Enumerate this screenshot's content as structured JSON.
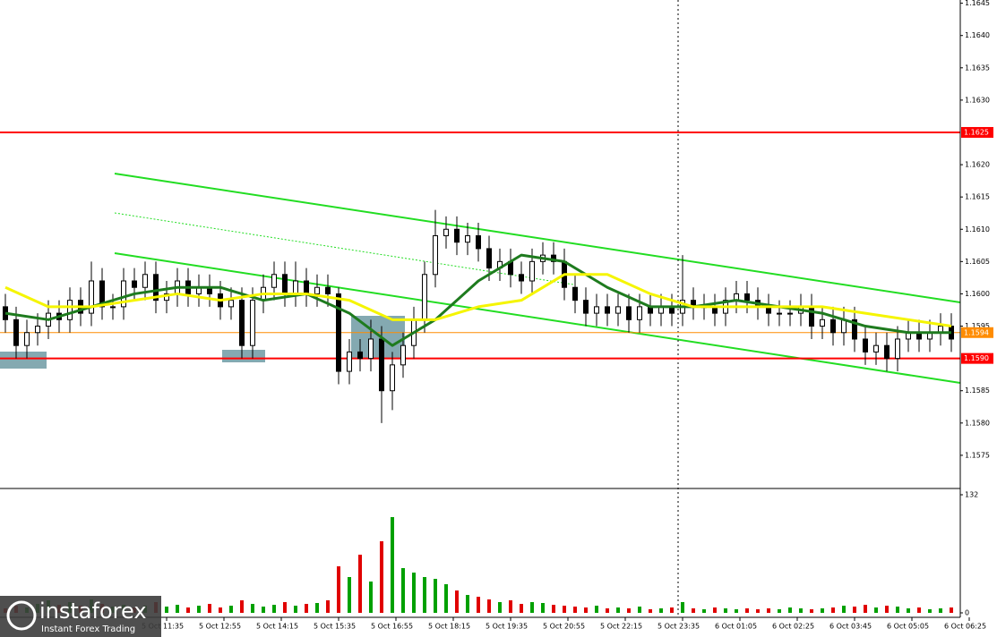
{
  "chart_data": {
    "type": "candlestick",
    "open": [
      1.1598,
      1.1596,
      1.1592,
      1.1594,
      1.1595,
      1.1597,
      1.1596,
      1.1599,
      1.1597,
      1.1602,
      1.1598,
      1.1598,
      1.1602,
      1.1601,
      1.1603,
      1.1599,
      1.16,
      1.1602,
      1.16,
      1.1601,
      1.16,
      1.1598,
      1.1599,
      1.1592,
      1.1599,
      1.1601,
      1.1603,
      1.16,
      1.1602,
      1.16,
      1.1601,
      1.16,
      1.1588,
      1.1591,
      1.159,
      1.1593,
      1.1585,
      1.1589,
      1.1592,
      1.1596,
      1.1603,
      1.1609,
      1.161,
      1.1608,
      1.1609,
      1.1607,
      1.1604,
      1.1605,
      1.1603,
      1.1602,
      1.1605,
      1.1606,
      1.1605,
      1.1601,
      1.1599,
      1.1597,
      1.1598,
      1.1597,
      1.1598,
      1.1596,
      1.1598,
      1.1597,
      1.1598,
      1.1597,
      1.1599,
      1.1598,
      1.1598,
      1.1597,
      1.1599,
      1.16,
      1.1599,
      1.1598,
      1.1597,
      1.1597,
      1.1597,
      1.1598,
      1.1595,
      1.1596,
      1.1594,
      1.1596,
      1.1593,
      1.1591,
      1.1592,
      1.159,
      1.1593,
      1.1594,
      1.1593,
      1.1594,
      1.1595
    ],
    "high": [
      1.16,
      1.1598,
      1.1596,
      1.1597,
      1.1599,
      1.1599,
      1.1601,
      1.1601,
      1.1605,
      1.1604,
      1.16,
      1.1604,
      1.1604,
      1.1605,
      1.1605,
      1.1602,
      1.1604,
      1.1604,
      1.1603,
      1.1603,
      1.1602,
      1.1601,
      1.1601,
      1.1601,
      1.1603,
      1.1605,
      1.1605,
      1.1605,
      1.1604,
      1.1603,
      1.1603,
      1.1601,
      1.1593,
      1.1593,
      1.1596,
      1.1595,
      1.1591,
      1.1594,
      1.1598,
      1.1605,
      1.1613,
      1.1612,
      1.1612,
      1.1611,
      1.1611,
      1.1609,
      1.1607,
      1.1607,
      1.1605,
      1.1607,
      1.1608,
      1.1608,
      1.1607,
      1.1603,
      1.1601,
      1.16,
      1.16,
      1.16,
      1.16,
      1.16,
      1.16,
      1.16,
      1.16,
      1.1606,
      1.1601,
      1.16,
      1.16,
      1.1601,
      1.1602,
      1.1602,
      1.1601,
      1.16,
      1.1599,
      1.1599,
      1.16,
      1.16,
      1.1598,
      1.1598,
      1.1598,
      1.1598,
      1.1595,
      1.1594,
      1.1594,
      1.1595,
      1.1596,
      1.1596,
      1.1596,
      1.1597,
      1.1597
    ],
    "low": [
      1.1594,
      1.159,
      1.159,
      1.1592,
      1.1593,
      1.1594,
      1.1594,
      1.1595,
      1.1595,
      1.1596,
      1.1596,
      1.1596,
      1.1599,
      1.1599,
      1.1597,
      1.1597,
      1.1598,
      1.1598,
      1.1598,
      1.1598,
      1.1596,
      1.1596,
      1.159,
      1.159,
      1.1597,
      1.1599,
      1.1598,
      1.1598,
      1.1598,
      1.1598,
      1.1598,
      1.1586,
      1.1586,
      1.1588,
      1.1588,
      1.158,
      1.1582,
      1.1587,
      1.159,
      1.1594,
      1.1601,
      1.1607,
      1.1606,
      1.1606,
      1.1605,
      1.1602,
      1.1602,
      1.1601,
      1.16,
      1.16,
      1.1603,
      1.1603,
      1.1599,
      1.1597,
      1.1595,
      1.1595,
      1.1595,
      1.1595,
      1.1594,
      1.1594,
      1.1595,
      1.1595,
      1.1595,
      1.1595,
      1.1596,
      1.1596,
      1.1595,
      1.1595,
      1.1597,
      1.1597,
      1.1596,
      1.1595,
      1.1595,
      1.1595,
      1.1595,
      1.1593,
      1.1593,
      1.1592,
      1.1592,
      1.1591,
      1.1589,
      1.1589,
      1.1588,
      1.1588,
      1.1591,
      1.1591,
      1.1591,
      1.1592,
      1.1591
    ],
    "close": [
      1.1596,
      1.1592,
      1.1594,
      1.1595,
      1.1597,
      1.1596,
      1.1599,
      1.1597,
      1.1602,
      1.1598,
      1.1598,
      1.1602,
      1.1601,
      1.1603,
      1.1599,
      1.16,
      1.1602,
      1.16,
      1.1601,
      1.16,
      1.1598,
      1.1599,
      1.1592,
      1.1599,
      1.1601,
      1.1603,
      1.16,
      1.1602,
      1.16,
      1.1601,
      1.16,
      1.1588,
      1.1591,
      1.159,
      1.1593,
      1.1585,
      1.1589,
      1.1592,
      1.1596,
      1.1603,
      1.1609,
      1.161,
      1.1608,
      1.1609,
      1.1607,
      1.1604,
      1.1605,
      1.1603,
      1.1602,
      1.1605,
      1.1606,
      1.1605,
      1.1601,
      1.1599,
      1.1597,
      1.1598,
      1.1597,
      1.1598,
      1.1596,
      1.1598,
      1.1597,
      1.1598,
      1.1597,
      1.1599,
      1.1598,
      1.1598,
      1.1597,
      1.1599,
      1.16,
      1.1599,
      1.1598,
      1.1597,
      1.1597,
      1.1597,
      1.1598,
      1.1595,
      1.1596,
      1.1594,
      1.1596,
      1.1593,
      1.1591,
      1.1592,
      1.159,
      1.1593,
      1.1594,
      1.1593,
      1.1594,
      1.1595,
      1.1593
    ],
    "volume": [
      5,
      8,
      6,
      10,
      14,
      9,
      12,
      8,
      15,
      10,
      7,
      9,
      6,
      8,
      12,
      7,
      9,
      6,
      8,
      10,
      6,
      8,
      14,
      10,
      7,
      9,
      12,
      8,
      10,
      11,
      14,
      52,
      40,
      65,
      35,
      80,
      107,
      50,
      45,
      40,
      38,
      32,
      25,
      20,
      18,
      15,
      12,
      14,
      10,
      12,
      11,
      9,
      8,
      7,
      6,
      8,
      5,
      6,
      5,
      7,
      4,
      5,
      6,
      12,
      5,
      4,
      6,
      5,
      4,
      5,
      4,
      5,
      4,
      6,
      5,
      4,
      5,
      6,
      8,
      7,
      9,
      6,
      8,
      7,
      5,
      6,
      4,
      5,
      6
    ],
    "up_color": "#00a000",
    "down_color": "#e00000",
    "series": [
      {
        "color": "#1e7b1e",
        "values": [
          1.1597,
          1.1596,
          1.1598,
          1.16,
          1.1601,
          1.1601,
          1.1599,
          1.16,
          1.1597,
          1.1592,
          1.1596,
          1.1602,
          1.1606,
          1.1605,
          1.1601,
          1.1598,
          1.1598,
          1.1599,
          1.1598,
          1.1597,
          1.1595,
          1.1594,
          1.1594
        ]
      },
      {
        "color": "#f5f500",
        "values": [
          1.1601,
          1.1598,
          1.1598,
          1.1599,
          1.16,
          1.1599,
          1.16,
          1.16,
          1.1599,
          1.1596,
          1.1596,
          1.1598,
          1.1599,
          1.1603,
          1.1603,
          1.16,
          1.1598,
          1.1598,
          1.1598,
          1.1598,
          1.1597,
          1.1596,
          1.1595
        ]
      }
    ],
    "levels": [
      {
        "value": 1.1625,
        "label": "1.1625",
        "color": "#ff0000"
      },
      {
        "value": 1.159,
        "label": "1.1590",
        "color": "#ff0000"
      },
      {
        "value": 1.1594,
        "label": "1.1594",
        "color": "#ff8c00"
      }
    ],
    "ylim": [
      1.157,
      1.16455
    ],
    "yticks": [
      1.1575,
      {
        "value": 1.158,
        "label": "1.1580"
      },
      1.1585,
      1.1595,
      {
        "value": 1.16,
        "label": "1.1600"
      },
      1.1605,
      {
        "value": 1.161,
        "label": "1.1610"
      },
      1.1615,
      {
        "value": 1.162,
        "label": "1.1620"
      },
      {
        "value": 1.163,
        "label": "1.1630"
      },
      1.1635,
      {
        "value": 1.164,
        "label": "1.1640"
      },
      1.1645
    ],
    "volume_ylim": [
      0,
      132
    ],
    "volume_yticks": [
      0,
      132
    ],
    "time_labels": [
      "5 Oct 11:35",
      "5 Oct 12:55",
      "5 Oct 14:15",
      "5 Oct 15:35",
      "5 Oct 16:55",
      "5 Oct 18:15",
      "5 Oct 19:35",
      "5 Oct 20:55",
      "5 Oct 22:15",
      "5 Oct 23:35",
      "6 Oct 01:05",
      "6 Oct 02:25",
      "6 Oct 03:45",
      "6 Oct 05:05",
      "6 Oct 06:25"
    ]
  },
  "logo": {
    "name": "instaforex",
    "tagline": "Instant Forex Trading"
  }
}
